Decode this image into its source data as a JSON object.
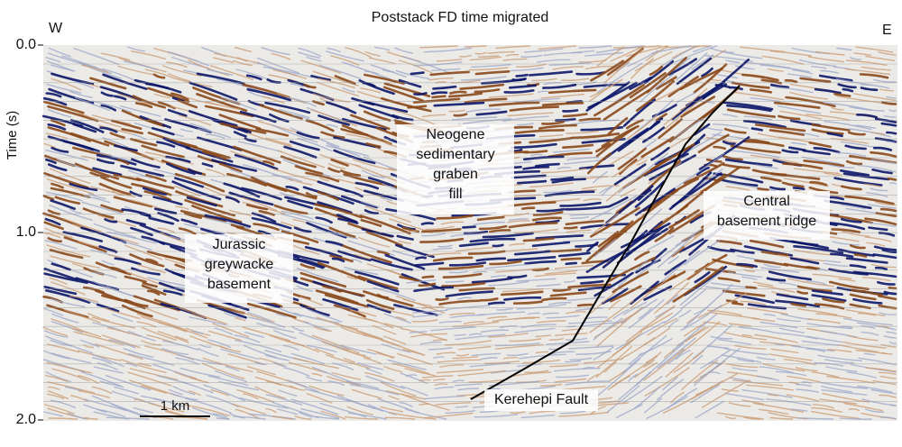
{
  "figure": {
    "title": "Poststack FD time migrated",
    "west": "W",
    "east": "E",
    "y_axis": {
      "label": "Time (s)",
      "lim": [
        0,
        2
      ],
      "ticks": [
        {
          "value": 0,
          "label": "0.0"
        },
        {
          "value": 1,
          "label": "1.0"
        },
        {
          "value": 2,
          "label": "2.0"
        }
      ]
    },
    "annotations": [
      {
        "lines": [
          "Neogene",
          "sedimentary",
          "graben",
          "fill"
        ]
      },
      {
        "lines": [
          "Jurassic",
          "greywacke",
          "basement"
        ]
      },
      {
        "lines": [
          "Central",
          "basement ridge"
        ]
      }
    ],
    "fault_label": "Kerehepi Fault",
    "scale_bar": "1 km"
  }
}
